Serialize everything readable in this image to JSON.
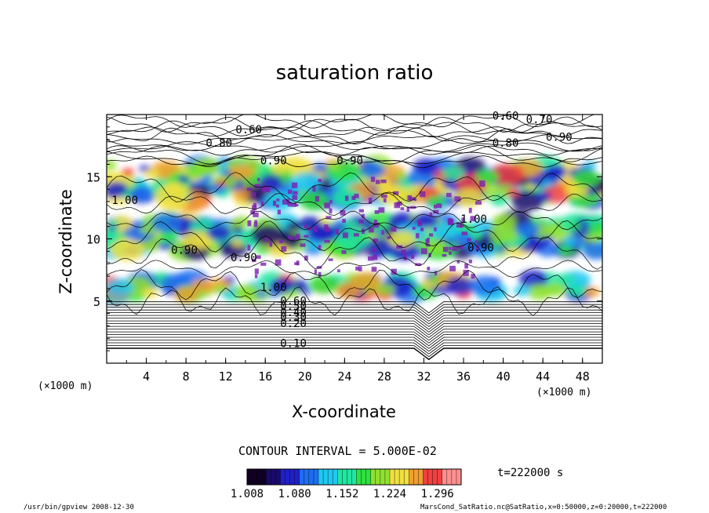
{
  "chart_data": {
    "type": "heatmap",
    "title": "saturation ratio",
    "xlabel": "X-coordinate",
    "ylabel": "Z-coordinate",
    "x_unit": "(×1000 m)",
    "x_unit_right": "(×1000 m)",
    "y_unit": "(×1000 m)",
    "xlim": [
      0,
      50
    ],
    "ylim": [
      0,
      20
    ],
    "x_ticks": [
      "4",
      "8",
      "12",
      "16",
      "20",
      "24",
      "28",
      "32",
      "36",
      "40",
      "44",
      "48"
    ],
    "y_ticks": [
      "5",
      "10",
      "15"
    ],
    "contour_interval_text": "CONTOUR INTERVAL = 5.000E-02",
    "contour_labels": [
      {
        "text": "0.10",
        "x": 17.5,
        "z": 1.3
      },
      {
        "text": "0.20",
        "x": 17.5,
        "z": 2.9
      },
      {
        "text": "0.30",
        "x": 17.5,
        "z": 3.4
      },
      {
        "text": "0.40",
        "x": 17.5,
        "z": 3.8
      },
      {
        "text": "0.50",
        "x": 17.5,
        "z": 4.3
      },
      {
        "text": "0.60",
        "x": 17.5,
        "z": 4.7
      },
      {
        "text": "1.00",
        "x": 15.5,
        "z": 5.8
      },
      {
        "text": "0.90",
        "x": 12.5,
        "z": 8.2
      },
      {
        "text": "0.90",
        "x": 6.5,
        "z": 8.8
      },
      {
        "text": "1.00",
        "x": 0.5,
        "z": 12.8
      },
      {
        "text": "0.90",
        "x": 15.5,
        "z": 16.0
      },
      {
        "text": "0.80",
        "x": 10.0,
        "z": 17.4
      },
      {
        "text": "0.60",
        "x": 13.0,
        "z": 18.5
      },
      {
        "text": "0.90",
        "x": 23.2,
        "z": 16.0
      },
      {
        "text": "1.00",
        "x": 35.7,
        "z": 11.3
      },
      {
        "text": "0.90",
        "x": 36.4,
        "z": 9.0
      },
      {
        "text": "0.80",
        "x": 38.9,
        "z": 17.4
      },
      {
        "text": "0.70",
        "x": 42.3,
        "z": 19.3
      },
      {
        "text": "0.60",
        "x": 38.9,
        "z": 19.6
      },
      {
        "text": "0.90",
        "x": 44.3,
        "z": 17.9
      }
    ],
    "shaded_regions": [
      {
        "level": 1.3,
        "x": [
          0,
          50
        ],
        "z": [
          13,
          16
        ]
      },
      {
        "level": 1.25,
        "x": [
          0,
          50
        ],
        "z": [
          9,
          11.5
        ]
      },
      {
        "level": 1.3,
        "x": [
          0,
          50
        ],
        "z": [
          5.5,
          6.8
        ]
      }
    ],
    "colorbar": {
      "min": 1.008,
      "max": 1.332,
      "ticks": [
        "1.008",
        "1.080",
        "1.152",
        "1.224",
        "1.296"
      ],
      "colors": [
        "#110022",
        "#1a0a6a",
        "#2020c8",
        "#1e6ef0",
        "#20c8f0",
        "#20e6a0",
        "#30e040",
        "#90e030",
        "#f0e040",
        "#f0a030",
        "#f04040",
        "#ff9090"
      ]
    },
    "grid": false
  },
  "time_label": "t=222000 s",
  "footer_left": "/usr/bin/gpview   2008-12-30",
  "footer_right": "MarsCond_SatRatio.nc@SatRatio,x=0:50000,z=0:20000,t=222000"
}
